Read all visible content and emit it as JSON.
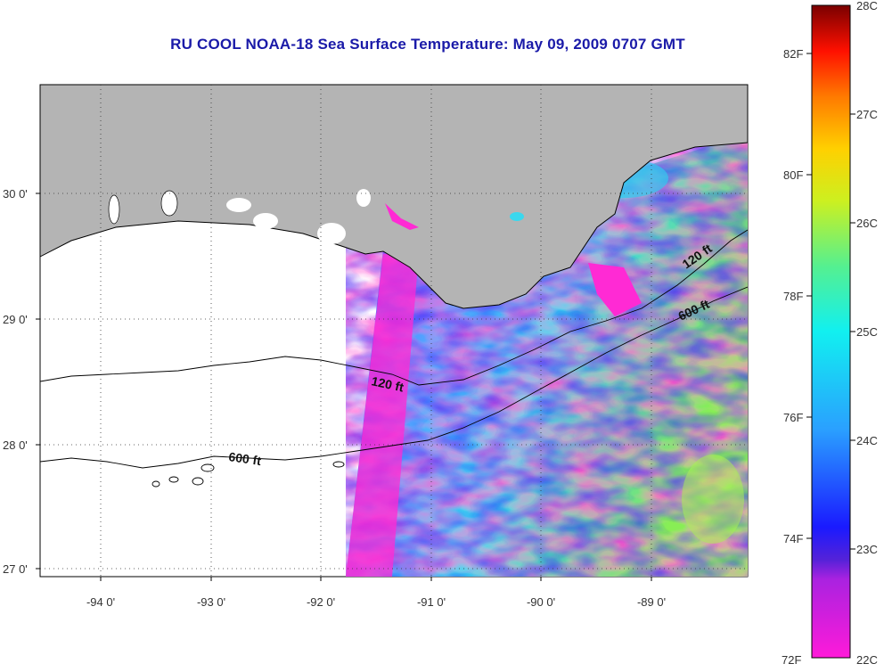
{
  "title": "RU COOL  NOAA-18  Sea Surface Temperature:  May 09, 2009 0707 GMT",
  "lat_labels": [
    "30 0'",
    "29 0'",
    "28 0'",
    "27 0'"
  ],
  "lon_labels": [
    "-94 0'",
    "-93 0'",
    "-92 0'",
    "-91 0'",
    "-90 0'",
    "-89 0'"
  ],
  "contours": {
    "c120_west": "120 ft",
    "c600_west": "600 ft",
    "c120_east": "120 ft",
    "c600_east": "600 ft"
  },
  "colorbar": {
    "fahrenheit": [
      "82F",
      "80F",
      "78F",
      "76F",
      "74F",
      "72F"
    ],
    "celsius": [
      "28C",
      "27C",
      "26C",
      "25C",
      "24C",
      "23C",
      "22C"
    ],
    "range_c": [
      22,
      28
    ]
  },
  "colors": {
    "land": "#b4b4b4",
    "title": "#1a1aa8",
    "water_nodata": "#ffffff"
  }
}
